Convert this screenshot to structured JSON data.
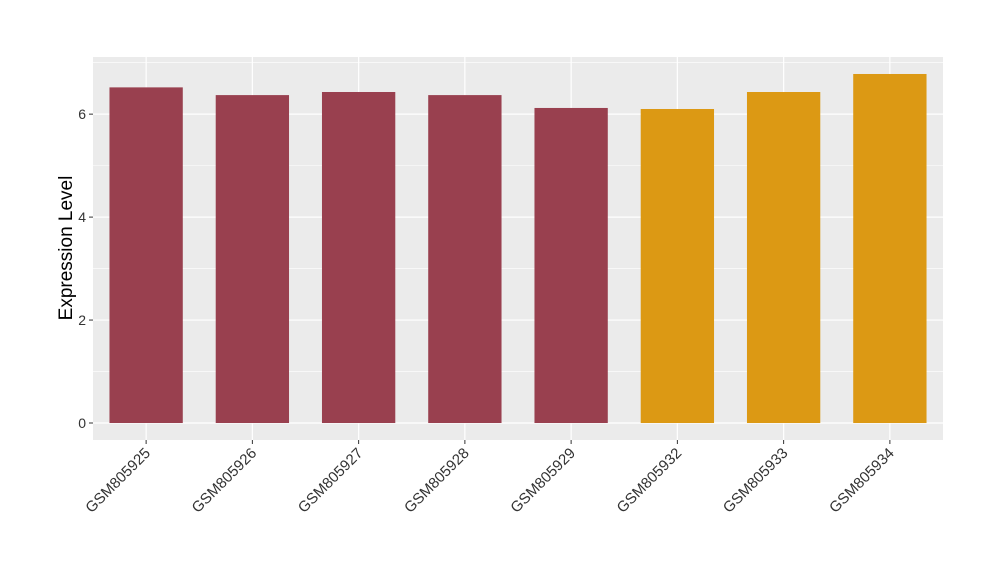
{
  "chart_data": {
    "type": "bar",
    "y_label": "Expression Level",
    "categories": [
      "GSM805925",
      "GSM805926",
      "GSM805927",
      "GSM805928",
      "GSM805929",
      "GSM805932",
      "GSM805933",
      "GSM805934"
    ],
    "values": [
      6.52,
      6.37,
      6.43,
      6.37,
      6.12,
      6.1,
      6.43,
      6.78
    ],
    "colors": [
      "#99404f",
      "#99404f",
      "#99404f",
      "#99404f",
      "#99404f",
      "#dc9914",
      "#dc9914",
      "#dc9914"
    ],
    "ylim": [
      -0.33,
      7.11
    ],
    "yticks": [
      0,
      2,
      4,
      6
    ],
    "y_minor_grid": [
      1,
      3,
      5,
      7
    ],
    "grid": true
  }
}
